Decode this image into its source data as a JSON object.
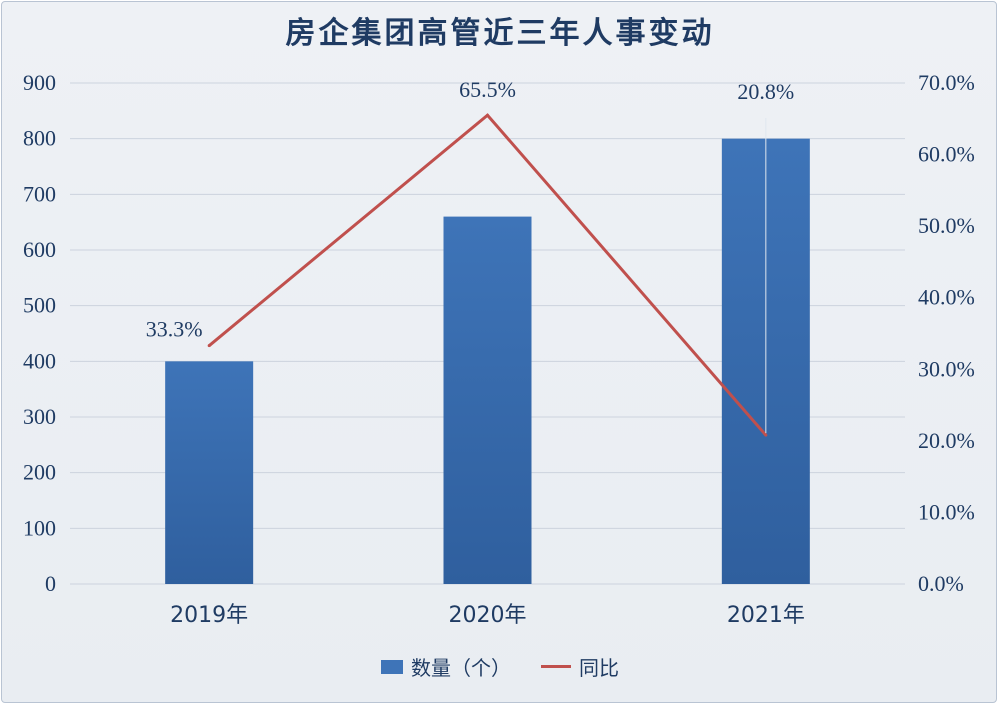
{
  "title": "房企集团高管近三年人事变动",
  "colors": {
    "bar": "#3e74b8",
    "bar_dark": "#2f5f9e",
    "line": "#c0504d",
    "text": "#1f3b63",
    "grid": "#ccd3de"
  },
  "legend": {
    "bar_label": "数量（个）",
    "line_label": "同比"
  },
  "chart_data": {
    "type": "bar",
    "categories": [
      "2019年",
      "2020年",
      "2021年"
    ],
    "series": [
      {
        "name": "数量（个）",
        "type": "bar",
        "axis": "left",
        "values": [
          400,
          660,
          800
        ]
      },
      {
        "name": "同比",
        "type": "line",
        "axis": "right",
        "values": [
          33.3,
          65.5,
          20.8
        ],
        "labels": [
          "33.3%",
          "65.5%",
          "20.8%"
        ]
      }
    ],
    "y_left": {
      "min": 0,
      "max": 900,
      "ticks": [
        "0",
        "100",
        "200",
        "300",
        "400",
        "500",
        "600",
        "700",
        "800",
        "900"
      ]
    },
    "y_right": {
      "min": 0,
      "max": 70,
      "ticks": [
        "0.0%",
        "10.0%",
        "20.0%",
        "30.0%",
        "40.0%",
        "50.0%",
        "60.0%",
        "70.0%"
      ]
    },
    "grid": true,
    "legend_position": "bottom"
  }
}
